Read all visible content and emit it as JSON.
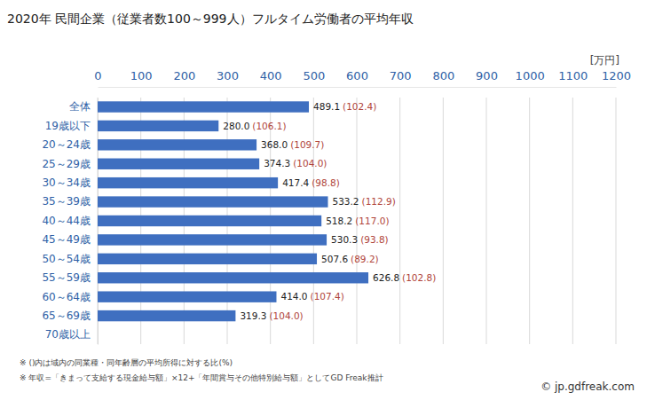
{
  "chart_data": {
    "type": "bar",
    "orientation": "horizontal",
    "title": "2020年 民間企業（従業者数100～999人）フルタイム労働者の平均年収",
    "x_label": "[万円]",
    "categories": [
      "全体",
      "19歳以下",
      "20～24歳",
      "25～29歳",
      "30～34歳",
      "35～39歳",
      "40～44歳",
      "45～49歳",
      "50～54歳",
      "55～59歳",
      "60～64歳",
      "65～69歳",
      "70歳以上"
    ],
    "values": [
      489.1,
      280.0,
      368.0,
      374.3,
      417.4,
      533.2,
      518.2,
      530.3,
      507.6,
      626.8,
      414.0,
      319.3,
      null
    ],
    "value_labels": [
      "489.1",
      "280.0",
      "368.0",
      "374.3",
      "417.4",
      "533.2",
      "518.2",
      "530.3",
      "507.6",
      "626.8",
      "414.0",
      "319.3",
      null
    ],
    "ratios": [
      102.4,
      106.1,
      109.7,
      104.0,
      98.8,
      112.9,
      117.0,
      93.8,
      89.2,
      102.8,
      107.4,
      104.0,
      null
    ],
    "ratio_labels": [
      "(102.4)",
      "(106.1)",
      "(109.7)",
      "(104.0)",
      "(98.8)",
      "(112.9)",
      "(117.0)",
      "(93.8)",
      "(89.2)",
      "(102.8)",
      "(107.4)",
      "(104.0)",
      null
    ],
    "color": "#3f6fc0",
    "xlim": [
      0,
      1200
    ],
    "xticks": [
      0,
      100,
      200,
      300,
      400,
      500,
      600,
      700,
      800,
      900,
      1000,
      1100,
      1200
    ],
    "grid": true,
    "data_labels": true,
    "notes": [
      "※ ()内は域内の同業種・同年齢層の平均所得に対する比(%)",
      "※ 年収=「きまって支給する現金給与額」×12+「年間賞与その他特別給与額」としてGD Freak推計"
    ],
    "credit": "© jp.gdfreak.com"
  }
}
